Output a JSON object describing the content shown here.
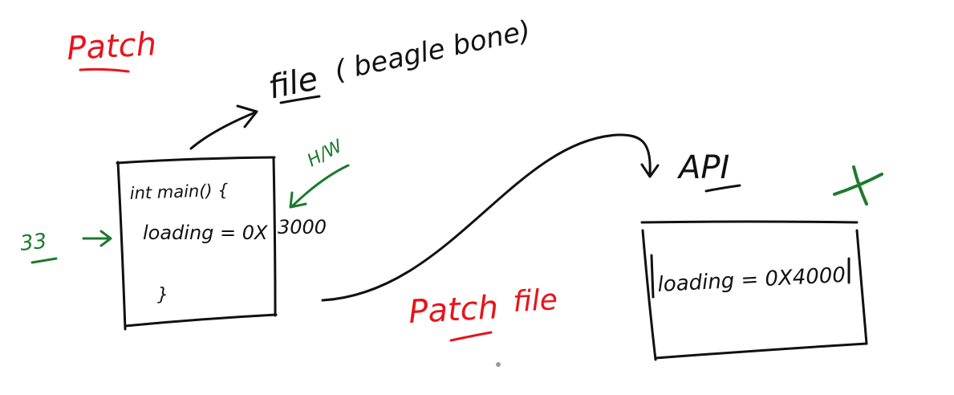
{
  "colors": {
    "ink": "#111111",
    "red": "#e8141c",
    "green": "#1c7a2c",
    "dot": "#9a9a9a"
  },
  "labels": {
    "patch_title": "Patch",
    "file_label": "file",
    "beaglebone_label": "( beagle bone)",
    "hw_label": "H/W",
    "api_label": "API",
    "patch_file_label": "Patch",
    "patch_file_label_2": "file",
    "line_33_label": "33"
  },
  "source_box": {
    "line1": "int main() {",
    "line2": "loading = 0X",
    "line2_value": "3000",
    "closing": "}"
  },
  "api_box": {
    "line1": "loading = 0X4000"
  }
}
